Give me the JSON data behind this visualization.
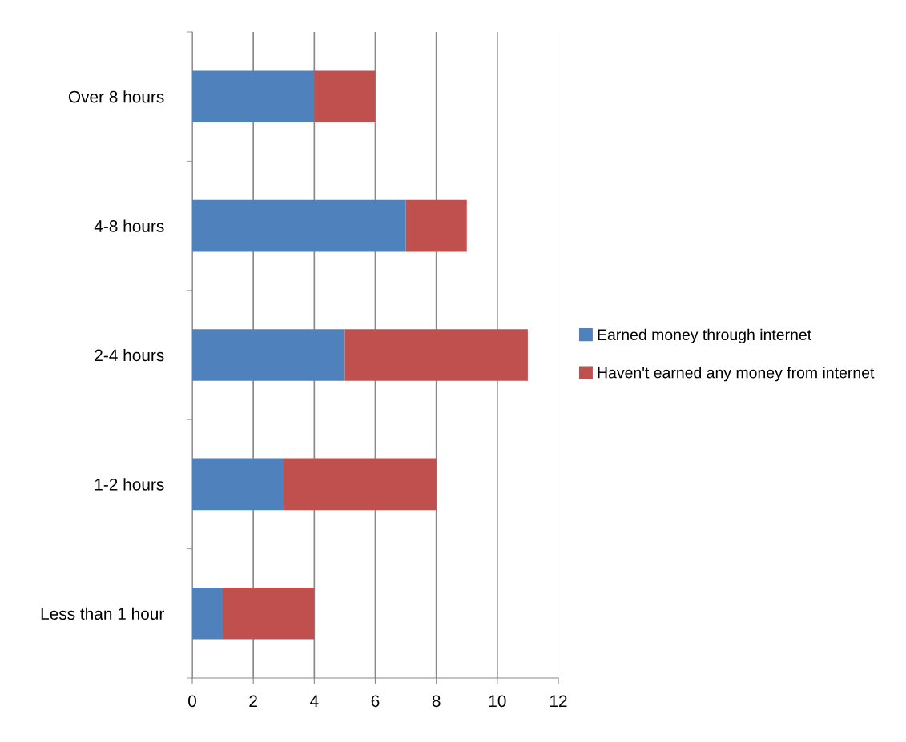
{
  "chart_data": {
    "type": "bar",
    "orientation": "horizontal",
    "stacked": true,
    "categories": [
      "Over 8 hours",
      "4-8 hours",
      "2-4 hours",
      "1-2 hours",
      "Less than 1 hour"
    ],
    "series": [
      {
        "name": "Earned money through internet",
        "color": "#4f81bd",
        "values": [
          4,
          7,
          5,
          3,
          1
        ]
      },
      {
        "name": "Haven't earned any money from internet",
        "color": "#c0504d",
        "values": [
          2,
          2,
          6,
          5,
          3
        ]
      }
    ],
    "xlim": [
      0,
      12
    ],
    "xticks": [
      0,
      2,
      4,
      6,
      8,
      10,
      12
    ],
    "grid": "x",
    "legend": "right"
  }
}
